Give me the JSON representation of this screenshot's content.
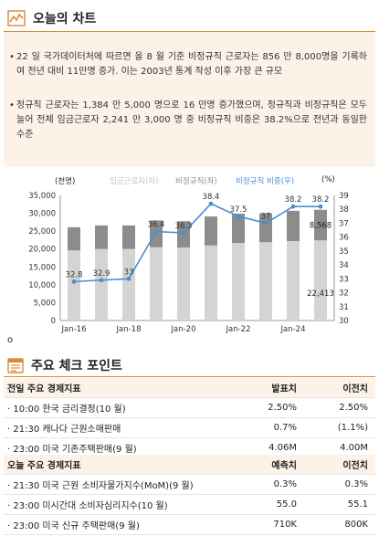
{
  "section1": {
    "title": "오늘의 차트",
    "icon": "line-chart-icon"
  },
  "bullets": [
    "22 일 국가데이터처에 따르면 올 8 월 기준 비정규직 근로자는 856 만 8,000명을 기록하여 전년 대비 11만명 증가. 이는 2003년 통계 작성 이후 가장 큰 규모",
    "정규직 근로자는 1,384 만 5,000 명으로 16 만명 증가했으며, 정규직과 비정규직은 모두 늘어 전체 임금근로자 2,241 만 3,000 명 중 비정규직 비중은 38.2%으로 전년과 동일한 수준"
  ],
  "bullet_marker": "•",
  "chart_data": {
    "type": "bar",
    "left_unit": "(천명)",
    "right_unit": "(%)",
    "legend": [
      "임금근로자(좌)",
      "비정규직(좌)",
      "비정규직 비중(우)"
    ],
    "colors": {
      "total": "#d4d4d4",
      "nonregular": "#8c8c8c",
      "ratio": "#4a8fd4"
    },
    "x_tick_labels": [
      "Jan-16",
      "Jan-18",
      "Jan-20",
      "Jan-22",
      "Jan-24"
    ],
    "y_left": {
      "min": 0,
      "max": 35000,
      "ticks": [
        "35,000",
        "30,000",
        "25,000",
        "20,000",
        "15,000",
        "10,000",
        "5,000",
        "0"
      ]
    },
    "y_right": {
      "min": 30,
      "max": 39,
      "ticks": [
        "39",
        "38",
        "37",
        "36",
        "35",
        "34",
        "33",
        "32",
        "31",
        "30"
      ]
    },
    "periods": [
      {
        "total": 19600,
        "nonregular": 6500,
        "ratio": 32.8
      },
      {
        "total": 20000,
        "nonregular": 6600,
        "ratio": 32.9
      },
      {
        "total": 20000,
        "nonregular": 6600,
        "ratio": 33.0
      },
      {
        "total": 20500,
        "nonregular": 7500,
        "ratio": 36.4
      },
      {
        "total": 20400,
        "nonregular": 7400,
        "ratio": 36.3
      },
      {
        "total": 21000,
        "nonregular": 8100,
        "ratio": 38.4
      },
      {
        "total": 21700,
        "nonregular": 8200,
        "ratio": 37.5
      },
      {
        "total": 21900,
        "nonregular": 8100,
        "ratio": 37.0
      },
      {
        "total": 22200,
        "nonregular": 8500,
        "ratio": 38.2
      },
      {
        "total": 22413,
        "nonregular": 8568,
        "ratio": 38.2
      }
    ],
    "ratio_labels": [
      "32.8",
      "32.9",
      "33",
      "36.4",
      "36.3",
      "38.4",
      "37.5",
      "37",
      "38.2",
      "38.2"
    ],
    "value_labels": {
      "nonregular_last": "8,568",
      "total_last": "22,413"
    }
  },
  "stray_mark": "o",
  "section2": {
    "title": "주요 체크 포인트",
    "icon": "calendar-icon"
  },
  "table_prev": {
    "header": [
      "전일 주요 경제지표",
      "발표치",
      "이전치"
    ],
    "rows": [
      [
        "· 10:00 한국 금리결정(10 월)",
        "2.50%",
        "2.50%"
      ],
      [
        "· 21:30 캐나다 근원소매판매",
        "0.7%",
        "(1.1%)"
      ],
      [
        "· 23:00 미국 기존주택판매(9 월)",
        "4.06M",
        "4.00M"
      ]
    ]
  },
  "table_today": {
    "header": [
      "오늘 주요 경제지표",
      "예측치",
      "이전치"
    ],
    "rows": [
      [
        "· 21:30 미국 근원 소비자물가지수(MoM)(9 월)",
        "0.3%",
        "0.3%"
      ],
      [
        "· 23:00 미시간대 소비자심리지수(10 월)",
        "55.0",
        "55.1"
      ],
      [
        "· 23:00 미국 신규 주택판매(9 월)",
        "710K",
        "800K"
      ]
    ]
  }
}
